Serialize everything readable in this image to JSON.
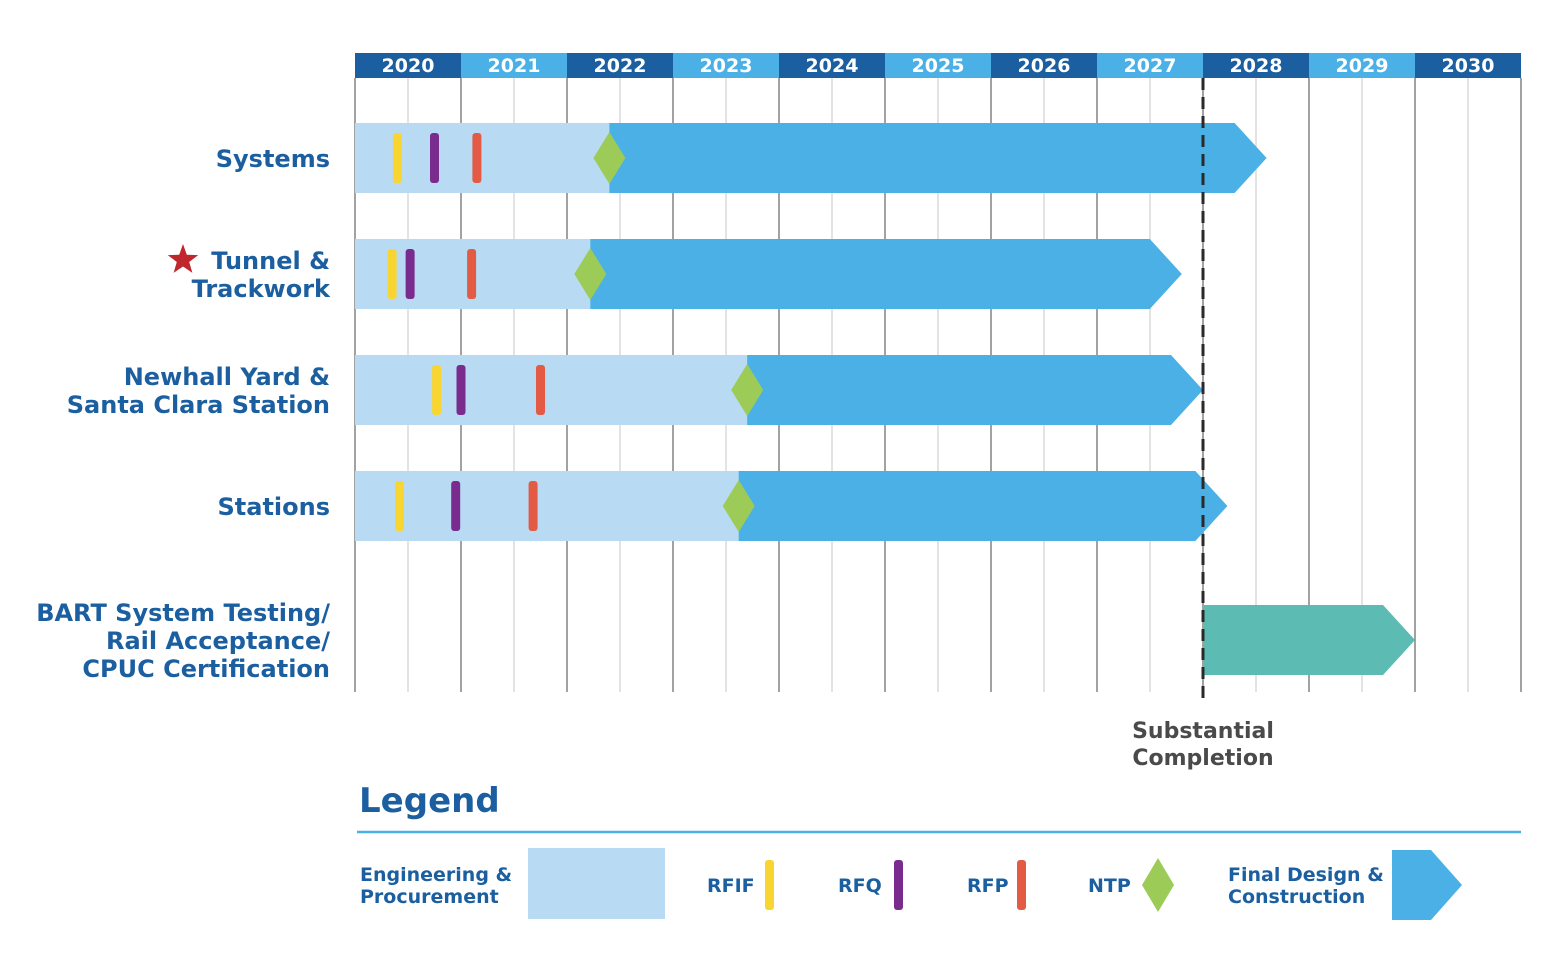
{
  "chart_data": {
    "type": "gantt",
    "title": "",
    "x_axis": {
      "years": [
        "2020",
        "2021",
        "2022",
        "2023",
        "2024",
        "2025",
        "2026",
        "2027",
        "2028",
        "2029",
        "2030"
      ],
      "range": [
        2020,
        2031
      ]
    },
    "rows": [
      {
        "id": "systems",
        "label_lines": [
          "Systems"
        ],
        "starred": false,
        "engineering_start": 2020.0,
        "rfif": 2020.4,
        "rfq": 2020.75,
        "rfp": 2021.15,
        "ntp": 2022.4,
        "construction_end": 2028.6
      },
      {
        "id": "tunnel-trackwork",
        "label_lines": [
          "Tunnel &",
          "Trackwork"
        ],
        "starred": true,
        "engineering_start": 2020.0,
        "rfif": 2020.35,
        "rfq": 2020.52,
        "rfp": 2021.1,
        "ntp": 2022.22,
        "construction_end": 2027.8
      },
      {
        "id": "newhall-santa-clara",
        "label_lines": [
          "Newhall Yard &",
          "Santa Clara Station"
        ],
        "starred": false,
        "engineering_start": 2020.0,
        "rfif": 2020.77,
        "rfq": 2021.0,
        "rfp": 2021.75,
        "ntp": 2023.7,
        "construction_end": 2028.0
      },
      {
        "id": "stations",
        "label_lines": [
          "Stations"
        ],
        "starred": false,
        "engineering_start": 2020.0,
        "rfif": 2020.42,
        "rfq": 2020.95,
        "rfp": 2021.68,
        "ntp": 2023.62,
        "construction_end": 2028.23
      },
      {
        "id": "bart-testing",
        "label_lines": [
          "BART System Testing/",
          "Rail Acceptance/",
          "CPUC Certification"
        ],
        "starred": false,
        "testing_start": 2028.0,
        "testing_end": 2030.0
      }
    ],
    "milestone": {
      "label_lines": [
        "Substantial",
        "Completion"
      ],
      "x": 2028.0
    },
    "legend": {
      "title": "Legend",
      "items": [
        {
          "key": "engineering",
          "label_lines": [
            "Engineering &",
            "Procurement"
          ]
        },
        {
          "key": "rfif",
          "label_lines": [
            "RFIF"
          ]
        },
        {
          "key": "rfq",
          "label_lines": [
            "RFQ"
          ]
        },
        {
          "key": "rfp",
          "label_lines": [
            "RFP"
          ]
        },
        {
          "key": "ntp",
          "label_lines": [
            "NTP"
          ]
        },
        {
          "key": "construction",
          "label_lines": [
            "Final Design &",
            "Construction"
          ]
        }
      ]
    }
  },
  "colors": {
    "year_dark": "#1b5fa0",
    "year_light": "#4ab0e6",
    "label_text": "#1b5fa0",
    "grid": "#d4d4d4",
    "grid_year": "#8a8a8a",
    "engineering": "#b8dbf3",
    "construction": "#4ab0e6",
    "testing": "#5cbcb4",
    "rfif": "#f8d530",
    "rfq": "#7a2b8e",
    "rfp": "#e35a45",
    "ntp": "#9ccb58",
    "star": "#c0272d",
    "milestone_text": "#4a4a4a"
  }
}
